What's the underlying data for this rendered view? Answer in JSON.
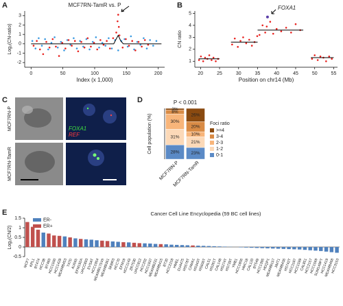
{
  "panel_labels": [
    "A",
    "B",
    "C",
    "D",
    "E"
  ],
  "micrographs": {
    "rows": [
      "MCF7RN-P",
      "MCF7RN-TamR"
    ],
    "channels": [
      "FOXA1",
      "REF"
    ]
  },
  "chart_data": [
    {
      "type": "scatter",
      "title": "MCF7RN-TamR vs. P",
      "x_label": "Index (x 1,000)",
      "y_label": "Log₂(CN-ratio)",
      "xlim": [
        -10,
        210
      ],
      "ylim": [
        -2.5,
        3.5
      ],
      "xticks": [
        0,
        50,
        100,
        150,
        200
      ],
      "yticks": [
        -2,
        -1,
        0,
        1,
        2,
        3
      ],
      "series": [
        {
          "color": "#3b9ae1",
          "style": "points",
          "x": [
            2,
            7,
            12,
            17,
            22,
            27,
            32,
            37,
            42,
            47,
            52,
            57,
            62,
            67,
            72,
            77,
            82,
            87,
            92,
            97,
            102,
            107,
            112,
            117,
            122,
            127,
            132,
            137,
            142,
            147,
            152,
            157,
            162,
            167,
            172,
            177,
            182,
            187,
            192,
            197
          ],
          "values": [
            0.3,
            -0.5,
            0.6,
            -0.2,
            0.5,
            -0.6,
            0.1,
            0.7,
            -0.4,
            0.2,
            -0.7,
            0.4,
            -0.1,
            0.6,
            -0.5,
            0.3,
            -0.3,
            0.5,
            -0.6,
            0.2,
            0.7,
            -0.4,
            0.1,
            -0.2,
            0.6,
            -0.5,
            0.4,
            -0.7,
            0.3,
            0.5,
            -0.3,
            0.8,
            -0.6,
            0.2,
            -0.1,
            0.6,
            -0.5,
            0.4,
            -0.2,
            0.3
          ]
        },
        {
          "color": "#e8221f",
          "style": "points",
          "x": [
            4,
            9,
            14,
            19,
            24,
            29,
            34,
            39,
            44,
            49,
            54,
            59,
            64,
            69,
            74,
            79,
            84,
            89,
            94,
            99,
            104,
            109,
            114,
            119,
            124,
            129,
            134,
            136,
            137,
            138,
            139,
            144,
            149,
            154,
            159,
            164,
            169,
            174,
            179,
            184
          ],
          "values": [
            -0.2,
            0.3,
            -0.6,
            -1.1,
            0.2,
            -0.4,
            0.5,
            -0.3,
            -1.3,
            0.1,
            -0.5,
            0.4,
            -0.2,
            0.3,
            -0.8,
            0.2,
            -0.4,
            0.6,
            -0.3,
            0.1,
            -0.6,
            0.4,
            -0.1,
            0.3,
            -0.5,
            0.6,
            1.2,
            2.4,
            3.1,
            1.8,
            0.9,
            -0.4,
            0.5,
            -0.2,
            0.3,
            -0.7,
            0.2,
            -0.3,
            0.4,
            -0.1
          ]
        },
        {
          "color": "#000000",
          "style": "line",
          "x": [
            0,
            130,
            133,
            137,
            141,
            145,
            205
          ],
          "values": [
            0,
            0,
            0.4,
            0.9,
            0.3,
            0,
            0
          ]
        }
      ]
    },
    {
      "type": "scatter",
      "x_label": "Position on chr14 (Mb)",
      "y_label": "CN ratio",
      "annotation": "FOXA1",
      "xlim": [
        18.5,
        56
      ],
      "ylim": [
        0.5,
        5.2
      ],
      "xticks": [
        20,
        25,
        30,
        35,
        40,
        45,
        50,
        55
      ],
      "yticks": [
        1,
        2,
        3,
        4,
        5
      ],
      "series": [
        {
          "color": "#e8221f",
          "style": "points",
          "x": [
            19.6,
            20.1,
            20.7,
            21.2,
            21.8,
            22.3,
            22.9,
            23.4,
            24.0,
            24.6,
            28.3,
            29.0,
            29.8,
            30.5,
            31.2,
            32.0,
            32.8,
            33.5,
            34.2,
            34.9,
            35.5,
            36.3,
            37.0,
            37.4,
            38.3,
            39.1,
            40.0,
            41.2,
            42.5,
            43.8,
            45.0,
            46.2,
            49.3,
            50.0,
            50.8,
            51.5,
            52.3,
            53.0,
            53.8,
            54.5
          ],
          "values": [
            1.1,
            1.4,
            1.0,
            1.3,
            1.2,
            1.5,
            1.1,
            1.3,
            1.0,
            1.2,
            2.4,
            2.9,
            2.2,
            2.7,
            3.0,
            2.5,
            2.8,
            2.3,
            2.6,
            3.1,
            3.2,
            4.0,
            3.4,
            3.9,
            4.3,
            3.3,
            3.7,
            3.5,
            3.8,
            3.4,
            4.1,
            3.6,
            1.2,
            1.5,
            1.1,
            1.4,
            1.3,
            1.0,
            1.4,
            1.2
          ]
        },
        {
          "color": "#5b3fa8",
          "style": "points",
          "x": [
            37.6
          ],
          "values": [
            4.7
          ]
        },
        {
          "color": "#000000",
          "style": "line",
          "x": [
            19.5,
            25,
            null,
            28,
            35,
            null,
            35,
            47,
            null,
            49,
            55
          ],
          "values": [
            1.2,
            1.2,
            null,
            2.6,
            2.6,
            null,
            3.6,
            3.6,
            null,
            1.3,
            1.3
          ]
        }
      ]
    },
    {
      "type": "stacked_bar",
      "title": "P < 0.001",
      "y_label": "Cell population (%)",
      "legend_title": "Foci ratio",
      "ylim": [
        0,
        100
      ],
      "categories": [
        "MCF7RN-P",
        "MCF7RN-TamR"
      ],
      "series": [
        {
          "name": "0-1",
          "color": "#5b8ac6",
          "values": [
            28,
            23
          ],
          "value_labels": [
            "28%",
            "23%"
          ]
        },
        {
          "name": "1-2",
          "color": "#fcd9b8",
          "values": [
            31,
            21
          ],
          "value_labels": [
            "31%",
            "21%"
          ]
        },
        {
          "name": "2-3",
          "color": "#f8b57a",
          "values": [
            30,
            10
          ],
          "value_labels": [
            "30%",
            "10%"
          ]
        },
        {
          "name": "3-4",
          "color": "#d98b45",
          "values": [
            8,
            20
          ],
          "value_labels": [
            "8%",
            "20%"
          ]
        },
        {
          "name": ">=4",
          "color": "#8a4a10",
          "values": [
            3,
            26
          ],
          "value_labels": [
            "3%",
            "26%"
          ]
        }
      ]
    },
    {
      "type": "bar",
      "title": "Cancer Cell Line Encyclopedia (59 BC cell lines)",
      "y_label": "Log₂(CN/2)",
      "ylim": [
        -0.5,
        1.5
      ],
      "yticks": [
        -0.5,
        0,
        0.5,
        1,
        1.5
      ],
      "categories": [
        "MCF7",
        "KPL1",
        "BT474",
        "HCC38",
        "BT483",
        "HCC1500",
        "HCC1428",
        "MDAMB453",
        "T47D",
        "AU565",
        "EFM192A",
        "UACC893",
        "EVSAT",
        "HCC1954",
        "MDAMB175VII",
        "MDAMB361",
        "SKBR3",
        "HCC70",
        "EFM19",
        "HCC1143",
        "ZR7530",
        "UACC812",
        "HCC202",
        "HCC1937",
        "MDAMB231",
        "MDAMB415",
        "BT20",
        "HCC2218",
        "HMEL",
        "DU4475",
        "HS578T",
        "CAMA1",
        "HS343T",
        "HS606T",
        "CAL51",
        "HS281T",
        "CAL148",
        "HS274T",
        "HS739T",
        "YMB1",
        "HCC1806",
        "HMC18",
        "CAL120",
        "BT549",
        "HCC1395",
        "HDQP1",
        "MDAMB157",
        "JIMT1",
        "MDAMB436",
        "HS742T",
        "HCC1187",
        "HCC1599",
        "CAL851",
        "HCC2157",
        "HCC1569",
        "SUM149PT",
        "HCC1419",
        "MDAMB468",
        "HCC3153"
      ],
      "series": [
        {
          "name": "ER-",
          "color": "#4f81bd",
          "values": [
            null,
            null,
            null,
            0.75,
            null,
            null,
            null,
            0.55,
            null,
            0.45,
            null,
            0.4,
            0.38,
            0.35,
            null,
            null,
            0.29,
            0.27,
            null,
            0.24,
            null,
            null,
            0.19,
            0.18,
            0.16,
            null,
            0.14,
            0.12,
            0.11,
            0.1,
            0.09,
            null,
            0.07,
            0.06,
            0.05,
            0.04,
            0.03,
            0.02,
            0.01,
            0,
            -0.02,
            -0.03,
            -0.04,
            -0.05,
            -0.06,
            -0.07,
            -0.08,
            -0.09,
            -0.1,
            -0.11,
            -0.12,
            -0.13,
            -0.15,
            -0.17,
            -0.19,
            -0.21,
            -0.24,
            -0.27,
            -0.3
          ]
        },
        {
          "name": "ER+",
          "color": "#c0504d",
          "values": [
            1.3,
            1.05,
            0.9,
            null,
            0.7,
            0.6,
            0.58,
            null,
            0.5,
            null,
            0.42,
            null,
            null,
            null,
            0.33,
            0.31,
            null,
            null,
            0.25,
            null,
            0.22,
            0.2,
            null,
            null,
            null,
            0.15,
            null,
            null,
            null,
            null,
            null,
            0.08,
            null,
            null,
            null,
            null,
            null,
            null,
            null,
            null,
            null,
            null,
            null,
            null,
            null,
            null,
            null,
            null,
            null,
            null,
            null,
            null,
            null,
            null,
            null,
            null,
            null,
            null,
            null
          ]
        }
      ]
    }
  ]
}
